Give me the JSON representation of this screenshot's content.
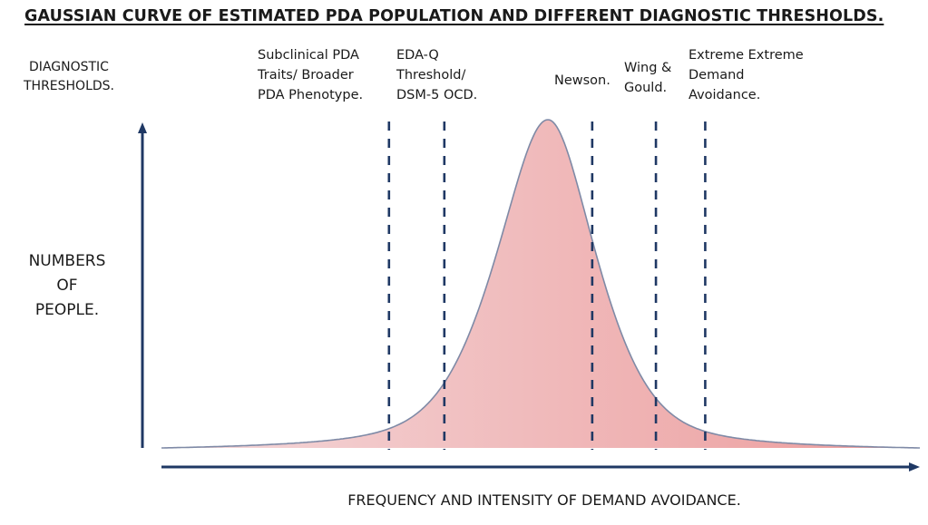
{
  "title": "GAUSSIAN CURVE OF ESTIMATED PDA POPULATION AND DIFFERENT DIAGNOSTIC THRESHOLDS.",
  "axes": {
    "thresholds_heading": "DIAGNOSTIC\nTHRESHOLDS.",
    "y_label": "NUMBERS\nOF\nPEOPLE.",
    "x_label": "FREQUENCY AND INTENSITY OF DEMAND AVOIDANCE."
  },
  "thresholds": [
    {
      "label": "Subclinical  PDA\nTraits/ Broader\nPDA Phenotype."
    },
    {
      "label": "EDA-Q\nThreshold/\nDSM-5 OCD."
    },
    {
      "label": "Newson."
    },
    {
      "label": "Wing &\nGould."
    },
    {
      "label": "Extreme Extreme\nDemand\nAvoidance."
    }
  ],
  "colors": {
    "axis": "#1f3864",
    "dash": "#1f3864",
    "curve_stroke": "#7f8aa6",
    "fill_left": "#f4d9db",
    "fill_right": "#ec9b9b"
  },
  "chart_data": {
    "type": "area",
    "title": "GAUSSIAN CURVE OF ESTIMATED PDA POPULATION AND DIFFERENT DIAGNOSTIC THRESHOLDS.",
    "xlabel": "FREQUENCY AND INTENSITY OF DEMAND AVOIDANCE.",
    "ylabel": "NUMBERS OF PEOPLE.",
    "x_range": [
      0,
      100
    ],
    "y_range": [
      0,
      100
    ],
    "curve_peak_x": 50,
    "grid": false,
    "legend": "none",
    "thresholds_x": [
      30,
      37.3,
      56.8,
      65.2,
      71.7
    ]
  }
}
